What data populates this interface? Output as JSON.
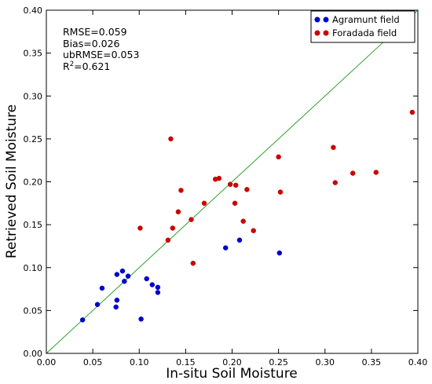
{
  "chart_data": {
    "type": "scatter",
    "title": "",
    "xlabel": "In-situ Soil Moisture",
    "ylabel": "Retrieved Soil Moisture",
    "xlim": [
      0,
      0.4
    ],
    "ylim": [
      0,
      0.4
    ],
    "xticks": [
      "0.00",
      "0.05",
      "0.10",
      "0.15",
      "0.20",
      "0.25",
      "0.30",
      "0.35",
      "0.40"
    ],
    "yticks": [
      "0.00",
      "0.05",
      "0.10",
      "0.15",
      "0.20",
      "0.25",
      "0.30",
      "0.35",
      "0.40"
    ],
    "grid": false,
    "legend_position": "top-right",
    "reference_line": {
      "x": [
        0,
        0.4
      ],
      "y": [
        0,
        0.4
      ],
      "color": "#2ca02c"
    },
    "stats": {
      "rmse": "RMSE=0.059",
      "bias": "Bias=0.026",
      "ubrmse": "ubRMSE=0.053",
      "r2_prefix": "R",
      "r2_sup": "2",
      "r2_value": "=0.621"
    },
    "series": [
      {
        "name": "Agramunt field",
        "color": "#0000cc",
        "points": [
          [
            0.039,
            0.039
          ],
          [
            0.055,
            0.057
          ],
          [
            0.06,
            0.076
          ],
          [
            0.075,
            0.054
          ],
          [
            0.076,
            0.062
          ],
          [
            0.076,
            0.092
          ],
          [
            0.082,
            0.096
          ],
          [
            0.084,
            0.084
          ],
          [
            0.088,
            0.09
          ],
          [
            0.102,
            0.04
          ],
          [
            0.108,
            0.087
          ],
          [
            0.114,
            0.08
          ],
          [
            0.12,
            0.071
          ],
          [
            0.12,
            0.077
          ],
          [
            0.193,
            0.123
          ],
          [
            0.208,
            0.132
          ],
          [
            0.251,
            0.117
          ]
        ]
      },
      {
        "name": "Foradada field",
        "color": "#cc0000",
        "points": [
          [
            0.101,
            0.146
          ],
          [
            0.131,
            0.132
          ],
          [
            0.134,
            0.25
          ],
          [
            0.136,
            0.146
          ],
          [
            0.142,
            0.165
          ],
          [
            0.145,
            0.19
          ],
          [
            0.156,
            0.156
          ],
          [
            0.158,
            0.105
          ],
          [
            0.17,
            0.175
          ],
          [
            0.182,
            0.203
          ],
          [
            0.186,
            0.204
          ],
          [
            0.198,
            0.197
          ],
          [
            0.203,
            0.175
          ],
          [
            0.204,
            0.196
          ],
          [
            0.212,
            0.154
          ],
          [
            0.216,
            0.191
          ],
          [
            0.223,
            0.143
          ],
          [
            0.25,
            0.229
          ],
          [
            0.252,
            0.188
          ],
          [
            0.309,
            0.24
          ],
          [
            0.311,
            0.199
          ],
          [
            0.33,
            0.21
          ],
          [
            0.355,
            0.211
          ],
          [
            0.394,
            0.281
          ]
        ]
      }
    ]
  }
}
